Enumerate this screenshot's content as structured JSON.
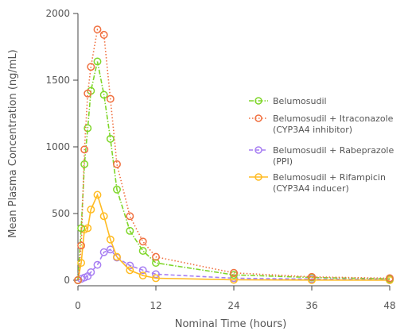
{
  "chart_data": {
    "type": "line",
    "xlabel": "Nominal Time (hours)",
    "ylabel": "Mean Plasma Concentration (ng/mL)",
    "xlim": [
      0,
      48
    ],
    "ylim": [
      0,
      2000
    ],
    "xticks": [
      0,
      12,
      24,
      36,
      48
    ],
    "yticks": [
      0,
      500,
      1000,
      1500,
      2000
    ],
    "grid": false,
    "legend_position": "right",
    "series": [
      {
        "name": "Belumosudil",
        "color": "#7fd62a",
        "dash": "dash-dot",
        "x": [
          0,
          0.5,
          1,
          1.5,
          2,
          3,
          4,
          5,
          6,
          8,
          10,
          12,
          24,
          36,
          48
        ],
        "y": [
          0,
          390,
          870,
          1140,
          1420,
          1640,
          1390,
          1060,
          680,
          370,
          220,
          130,
          40,
          20,
          10
        ]
      },
      {
        "name": "Belumosudil + Itraconazole",
        "sub": "(CYP3A4 inhibitor)",
        "color": "#f07040",
        "dash": "dot",
        "x": [
          0,
          0.5,
          1,
          1.5,
          2,
          3,
          4,
          5,
          6,
          8,
          10,
          12,
          24,
          36,
          48
        ],
        "y": [
          0,
          260,
          980,
          1400,
          1600,
          1880,
          1840,
          1360,
          870,
          480,
          290,
          175,
          55,
          25,
          15
        ]
      },
      {
        "name": "Belumosudil + Rabeprazole",
        "sub": "(PPI)",
        "color": "#a77ef2",
        "dash": "dash",
        "x": [
          0,
          0.5,
          1,
          1.5,
          2,
          3,
          4,
          5,
          6,
          8,
          10,
          12,
          24,
          36,
          48
        ],
        "y": [
          0,
          10,
          20,
          30,
          60,
          115,
          210,
          230,
          170,
          110,
          75,
          45,
          15,
          8,
          5
        ]
      },
      {
        "name": "Belumosudil + Rifampicin",
        "sub": "(CYP3A4 inducer)",
        "color": "#ffbb22",
        "dash": "solid",
        "x": [
          0,
          0.5,
          1,
          1.5,
          2,
          3,
          4,
          5,
          6,
          8,
          10,
          12,
          24,
          36,
          48
        ],
        "y": [
          0,
          130,
          380,
          390,
          530,
          640,
          480,
          305,
          175,
          75,
          35,
          15,
          3,
          1,
          0
        ]
      }
    ]
  }
}
